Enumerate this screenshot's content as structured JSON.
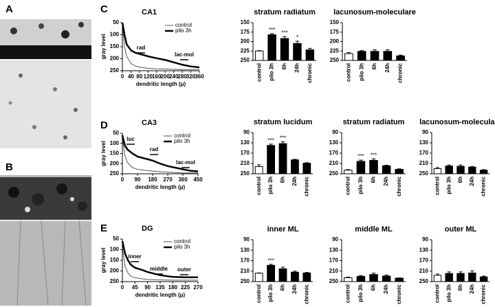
{
  "panel_labels": [
    "A",
    "B",
    "C",
    "D",
    "E"
  ],
  "chart_data": [
    {
      "type": "line",
      "title": "CA1",
      "xlabel": "dendritic length (μ)",
      "ylabel": "gray level",
      "x": [
        0,
        10,
        20,
        40,
        60,
        80,
        120,
        160,
        200,
        240,
        280,
        320,
        360
      ],
      "series": [
        {
          "name": "control",
          "color": "#555555",
          "linewidth": 1,
          "values": [
            60,
            150,
            190,
            220,
            230,
            235,
            240,
            242,
            243,
            244,
            245,
            245,
            245
          ]
        },
        {
          "name": "pilo 3h",
          "color": "#000000",
          "linewidth": 2.5,
          "values": [
            50,
            100,
            140,
            165,
            175,
            180,
            190,
            198,
            205,
            215,
            225,
            232,
            236
          ]
        }
      ],
      "annotations": [
        "rad",
        "lac-mol"
      ],
      "xlim": [
        0,
        360
      ],
      "xticks": [
        0,
        40,
        80,
        120,
        160,
        200,
        240,
        280,
        320,
        360
      ],
      "ylim": [
        50,
        250
      ],
      "yticks": [
        50,
        100,
        150,
        200,
        250
      ],
      "y_inverted": true
    },
    {
      "type": "bar",
      "title": "stratum radiatum",
      "categories": [
        "control",
        "pilo 3h",
        "6h",
        "24h",
        "chronic"
      ],
      "values": [
        225,
        182,
        192,
        205,
        222
      ],
      "errors": [
        1,
        3,
        5,
        6,
        4
      ],
      "significance": [
        null,
        "***",
        "***",
        "*",
        null
      ],
      "colors": [
        "#ffffff",
        "#000000",
        "#000000",
        "#000000",
        "#000000"
      ],
      "ylim": [
        150,
        250
      ],
      "yticks": [
        150,
        175,
        200,
        225,
        250
      ],
      "y_inverted": true
    },
    {
      "type": "bar",
      "title": "lacunosum-moleculare",
      "categories": [
        "control",
        "pilo 3h",
        "6h",
        "24h",
        "chronic"
      ],
      "values": [
        232,
        226,
        226,
        226,
        238
      ],
      "errors": [
        3,
        2,
        4,
        4,
        2
      ],
      "colors": [
        "#ffffff",
        "#000000",
        "#000000",
        "#000000",
        "#000000"
      ],
      "ylim": [
        150,
        250
      ],
      "yticks": [
        150,
        175,
        200,
        225,
        250
      ],
      "y_inverted": true
    },
    {
      "type": "line",
      "title": "CA3",
      "xlabel": "dendritic length (μ)",
      "ylabel": "gray level",
      "x": [
        0,
        15,
        30,
        60,
        90,
        135,
        180,
        225,
        270,
        315,
        360,
        405,
        450
      ],
      "series": [
        {
          "name": "control",
          "color": "#555555",
          "linewidth": 1,
          "values": [
            70,
            160,
            195,
            220,
            228,
            233,
            237,
            240,
            242,
            244,
            246,
            246,
            246
          ]
        },
        {
          "name": "pilo 3h",
          "color": "#000000",
          "linewidth": 2.5,
          "values": [
            60,
            110,
            130,
            150,
            165,
            175,
            185,
            200,
            212,
            220,
            228,
            235,
            238
          ]
        }
      ],
      "annotations": [
        "luc",
        "rad",
        "lac-mol"
      ],
      "xlim": [
        0,
        450
      ],
      "xticks": [
        0,
        90,
        180,
        270,
        360,
        450
      ],
      "ylim": [
        50,
        250
      ],
      "yticks": [
        50,
        100,
        150,
        200,
        250
      ],
      "y_inverted": true
    },
    {
      "type": "bar",
      "title": "stratum lucidum",
      "categories": [
        "control",
        "pilo 3h",
        "6h",
        "24h",
        "chronic"
      ],
      "values": [
        222,
        140,
        133,
        196,
        209
      ],
      "errors": [
        7,
        5,
        7,
        2,
        2
      ],
      "significance": [
        null,
        "***",
        "***",
        null,
        null
      ],
      "colors": [
        "#ffffff",
        "#000000",
        "#000000",
        "#000000",
        "#000000"
      ],
      "ylim": [
        90,
        250
      ],
      "yticks": [
        90,
        130,
        170,
        210,
        250
      ],
      "y_inverted": true
    },
    {
      "type": "bar",
      "title": "stratum radiatum",
      "categories": [
        "control",
        "pilo 3h",
        "6h",
        "24h",
        "chronic"
      ],
      "values": [
        236,
        202,
        198,
        219,
        233
      ],
      "errors": [
        2,
        5,
        6,
        2,
        2
      ],
      "significance": [
        null,
        "***",
        "***",
        null,
        null
      ],
      "colors": [
        "#ffffff",
        "#000000",
        "#000000",
        "#000000",
        "#000000"
      ],
      "ylim": [
        90,
        250
      ],
      "yticks": [
        90,
        130,
        170,
        210,
        250
      ],
      "y_inverted": true
    },
    {
      "type": "bar",
      "title": "lacunosum-moleculare",
      "categories": [
        "control",
        "pilo 3h",
        "6h",
        "24h",
        "chronic"
      ],
      "values": [
        230,
        220,
        221,
        224,
        236
      ],
      "errors": [
        4,
        4,
        5,
        2,
        2
      ],
      "colors": [
        "#ffffff",
        "#000000",
        "#000000",
        "#000000",
        "#000000"
      ],
      "ylim": [
        90,
        250
      ],
      "yticks": [
        90,
        130,
        170,
        210,
        250
      ],
      "y_inverted": true
    },
    {
      "type": "line",
      "title": "DG",
      "xlabel": "dendritic length (μ)",
      "ylabel": "gray level",
      "x": [
        0,
        10,
        20,
        30,
        45,
        70,
        90,
        135,
        180,
        225,
        270
      ],
      "series": [
        {
          "name": "control",
          "color": "#555555",
          "linewidth": 1,
          "values": [
            90,
            180,
            210,
            225,
            232,
            237,
            240,
            242,
            243,
            243,
            243
          ]
        },
        {
          "name": "pilo 3h",
          "color": "#000000",
          "linewidth": 2.5,
          "values": [
            60,
            120,
            150,
            170,
            185,
            195,
            205,
            220,
            228,
            230,
            230
          ]
        }
      ],
      "annotations": [
        "inner",
        "middle",
        "outer"
      ],
      "xlim": [
        0,
        270
      ],
      "xticks": [
        0,
        45,
        90,
        135,
        180,
        225,
        270
      ],
      "ylim": [
        50,
        250
      ],
      "yticks": [
        50,
        100,
        150,
        200,
        250
      ],
      "y_inverted": true
    },
    {
      "type": "bar",
      "title": "inner ML",
      "categories": [
        "control",
        "pilo 3h",
        "6h",
        "24h",
        "chronic"
      ],
      "values": [
        218,
        188,
        201,
        214,
        217
      ],
      "errors": [
        1,
        4,
        6,
        4,
        2
      ],
      "significance": [
        null,
        "***",
        null,
        null,
        null
      ],
      "colors": [
        "#ffffff",
        "#000000",
        "#000000",
        "#000000",
        "#000000"
      ],
      "ylim": [
        90,
        250
      ],
      "yticks": [
        90,
        130,
        170,
        210,
        250
      ],
      "y_inverted": true
    },
    {
      "type": "bar",
      "title": "middle ML",
      "categories": [
        "control",
        "pilo 3h",
        "6h",
        "24h",
        "chronic"
      ],
      "values": [
        235,
        230,
        223,
        229,
        237
      ],
      "errors": [
        2,
        3,
        5,
        4,
        1
      ],
      "colors": [
        "#ffffff",
        "#000000",
        "#000000",
        "#000000",
        "#000000"
      ],
      "ylim": [
        90,
        250
      ],
      "yticks": [
        90,
        130,
        170,
        210,
        250
      ],
      "y_inverted": true
    },
    {
      "type": "bar",
      "title": "outer ML",
      "categories": [
        "control",
        "pilo 3h",
        "6h",
        "24h",
        "chronic"
      ],
      "values": [
        226,
        219,
        219,
        217,
        232
      ],
      "errors": [
        5,
        6,
        6,
        8,
        3
      ],
      "colors": [
        "#ffffff",
        "#000000",
        "#000000",
        "#000000",
        "#000000"
      ],
      "ylim": [
        90,
        250
      ],
      "yticks": [
        90,
        130,
        170,
        210,
        250
      ],
      "y_inverted": true
    }
  ]
}
